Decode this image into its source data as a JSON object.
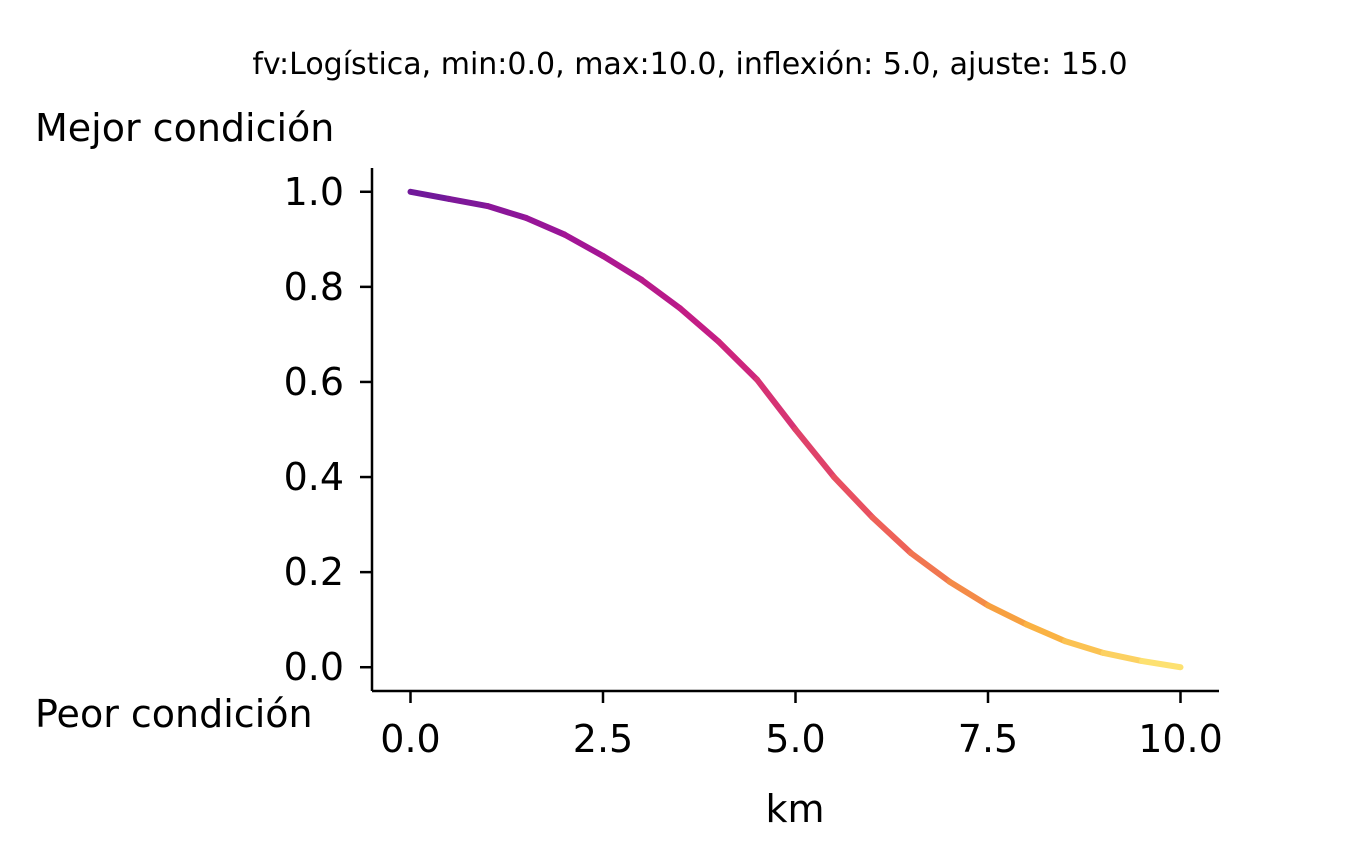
{
  "chart_data": {
    "type": "line",
    "title": "fv:Logística, min:0.0, max:10.0, inflexión: 5.0, ajuste: 15.0",
    "xlabel": "km",
    "ylabel": "",
    "top_annotation": "Mejor condición",
    "bottom_annotation": "Peor condición",
    "xlim": [
      -0.5,
      10.5
    ],
    "ylim": [
      -0.05,
      1.05
    ],
    "xticks": [
      0.0,
      2.5,
      5.0,
      7.5,
      10.0
    ],
    "xtick_labels": [
      "0.0",
      "2.5",
      "5.0",
      "7.5",
      "10.0"
    ],
    "yticks": [
      0.0,
      0.2,
      0.4,
      0.6,
      0.8,
      1.0
    ],
    "ytick_labels": [
      "0.0",
      "0.2",
      "0.4",
      "0.6",
      "0.8",
      "1.0"
    ],
    "grid": false,
    "colormap": "plasma (purple to yellow)",
    "color_start": "#6a1a9a",
    "color_end": "#fde978",
    "series": [
      {
        "x": [
          0.0,
          0.5,
          1.0,
          1.5,
          2.0,
          2.5,
          3.0,
          3.5,
          4.0,
          4.5,
          5.0,
          5.5,
          6.0,
          6.5,
          7.0,
          7.5,
          8.0,
          8.5,
          9.0,
          9.5,
          10.0
        ],
        "values": [
          1.0,
          0.985,
          0.97,
          0.945,
          0.91,
          0.865,
          0.815,
          0.755,
          0.685,
          0.605,
          0.5,
          0.4,
          0.315,
          0.24,
          0.18,
          0.13,
          0.09,
          0.055,
          0.03,
          0.013,
          0.0
        ]
      }
    ]
  }
}
